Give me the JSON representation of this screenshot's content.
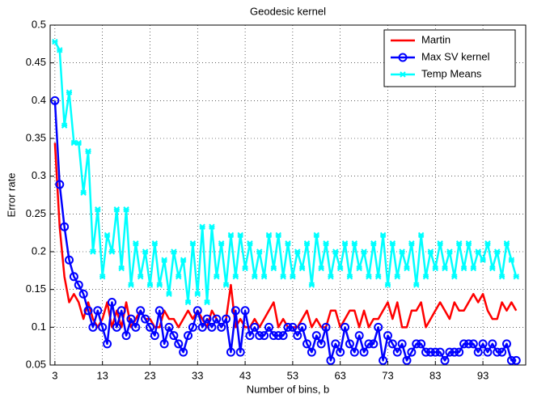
{
  "chart_data": {
    "type": "line",
    "title": "Geodesic kernel",
    "xlabel": "Number of bins, b",
    "ylabel": "Error rate",
    "x": [
      3,
      4,
      5,
      6,
      7,
      8,
      9,
      10,
      11,
      12,
      13,
      14,
      15,
      16,
      17,
      18,
      19,
      20,
      21,
      22,
      23,
      24,
      25,
      26,
      27,
      28,
      29,
      30,
      31,
      32,
      33,
      34,
      35,
      36,
      37,
      38,
      39,
      40,
      41,
      42,
      43,
      44,
      45,
      46,
      47,
      48,
      49,
      50,
      51,
      52,
      53,
      54,
      55,
      56,
      57,
      58,
      59,
      60,
      61,
      62,
      63,
      64,
      65,
      66,
      67,
      68,
      69,
      70,
      71,
      72,
      73,
      74,
      75,
      76,
      77,
      78,
      79,
      80,
      81,
      82,
      83,
      84,
      85,
      86,
      87,
      88,
      89,
      90,
      91,
      92,
      93,
      94,
      95,
      96,
      97,
      98,
      99,
      100
    ],
    "series": [
      {
        "name": "Martin",
        "color": "#ff0000",
        "marker": "none",
        "values": [
          0.344,
          0.233,
          0.167,
          0.133,
          0.144,
          0.133,
          0.111,
          0.133,
          0.111,
          0.1,
          0.111,
          0.133,
          0.1,
          0.122,
          0.1,
          0.133,
          0.1,
          0.111,
          0.122,
          0.111,
          0.111,
          0.1,
          0.1,
          0.122,
          0.111,
          0.111,
          0.1,
          0.111,
          0.122,
          0.111,
          0.122,
          0.111,
          0.1,
          0.122,
          0.111,
          0.1,
          0.111,
          0.156,
          0.1,
          0.111,
          0.1,
          0.1,
          0.111,
          0.1,
          0.111,
          0.122,
          0.133,
          0.1,
          0.111,
          0.1,
          0.1,
          0.1,
          0.111,
          0.122,
          0.1,
          0.111,
          0.1,
          0.1,
          0.122,
          0.122,
          0.1,
          0.111,
          0.122,
          0.122,
          0.1,
          0.122,
          0.1,
          0.111,
          0.111,
          0.122,
          0.133,
          0.111,
          0.133,
          0.1,
          0.1,
          0.122,
          0.122,
          0.133,
          0.1,
          0.111,
          0.122,
          0.133,
          0.122,
          0.111,
          0.133,
          0.122,
          0.122,
          0.133,
          0.144,
          0.133,
          0.144,
          0.122,
          0.111,
          0.111,
          0.133,
          0.122,
          0.133,
          0.122
        ]
      },
      {
        "name": "Max SV kernel",
        "color": "#0000ff",
        "marker": "o",
        "values": [
          0.4,
          0.289,
          0.233,
          0.189,
          0.167,
          0.156,
          0.144,
          0.122,
          0.1,
          0.122,
          0.1,
          0.078,
          0.133,
          0.1,
          0.122,
          0.089,
          0.111,
          0.1,
          0.122,
          0.111,
          0.1,
          0.089,
          0.122,
          0.078,
          0.1,
          0.089,
          0.078,
          0.067,
          0.089,
          0.1,
          0.122,
          0.1,
          0.111,
          0.1,
          0.111,
          0.1,
          0.111,
          0.067,
          0.122,
          0.067,
          0.122,
          0.089,
          0.1,
          0.089,
          0.089,
          0.1,
          0.089,
          0.089,
          0.089,
          0.1,
          0.1,
          0.089,
          0.1,
          0.078,
          0.067,
          0.089,
          0.078,
          0.1,
          0.056,
          0.078,
          0.067,
          0.1,
          0.078,
          0.067,
          0.089,
          0.067,
          0.078,
          0.078,
          0.1,
          0.056,
          0.089,
          0.078,
          0.067,
          0.078,
          0.056,
          0.067,
          0.078,
          0.078,
          0.067,
          0.067,
          0.067,
          0.067,
          0.056,
          0.067,
          0.067,
          0.067,
          0.078,
          0.078,
          0.078,
          0.067,
          0.078,
          0.067,
          0.078,
          0.067,
          0.067,
          0.078,
          0.056,
          0.056
        ]
      },
      {
        "name": "Temp Means",
        "color": "#00ffff",
        "marker": "x",
        "values": [
          0.478,
          0.467,
          0.367,
          0.411,
          0.344,
          0.344,
          0.278,
          0.333,
          0.2,
          0.256,
          0.167,
          0.222,
          0.2,
          0.256,
          0.178,
          0.256,
          0.156,
          0.211,
          0.167,
          0.2,
          0.156,
          0.211,
          0.156,
          0.189,
          0.144,
          0.2,
          0.167,
          0.189,
          0.133,
          0.211,
          0.144,
          0.233,
          0.133,
          0.233,
          0.167,
          0.211,
          0.156,
          0.222,
          0.167,
          0.222,
          0.178,
          0.211,
          0.167,
          0.2,
          0.167,
          0.222,
          0.178,
          0.222,
          0.167,
          0.211,
          0.167,
          0.2,
          0.178,
          0.211,
          0.156,
          0.222,
          0.178,
          0.211,
          0.167,
          0.2,
          0.178,
          0.211,
          0.167,
          0.211,
          0.178,
          0.2,
          0.167,
          0.211,
          0.167,
          0.222,
          0.156,
          0.211,
          0.167,
          0.2,
          0.178,
          0.211,
          0.156,
          0.222,
          0.167,
          0.2,
          0.178,
          0.211,
          0.178,
          0.2,
          0.167,
          0.211,
          0.178,
          0.211,
          0.178,
          0.2,
          0.189,
          0.211,
          0.178,
          0.2,
          0.167,
          0.211,
          0.189,
          0.167
        ]
      }
    ],
    "xlim": [
      2,
      102
    ],
    "ylim": [
      0.05,
      0.5
    ],
    "xticks": [
      3,
      13,
      23,
      33,
      43,
      53,
      63,
      73,
      83,
      93
    ],
    "yticks": [
      0.05,
      0.1,
      0.15,
      0.2,
      0.25,
      0.3,
      0.35,
      0.4,
      0.45,
      0.5
    ],
    "grid": true,
    "legend": "northeast"
  }
}
